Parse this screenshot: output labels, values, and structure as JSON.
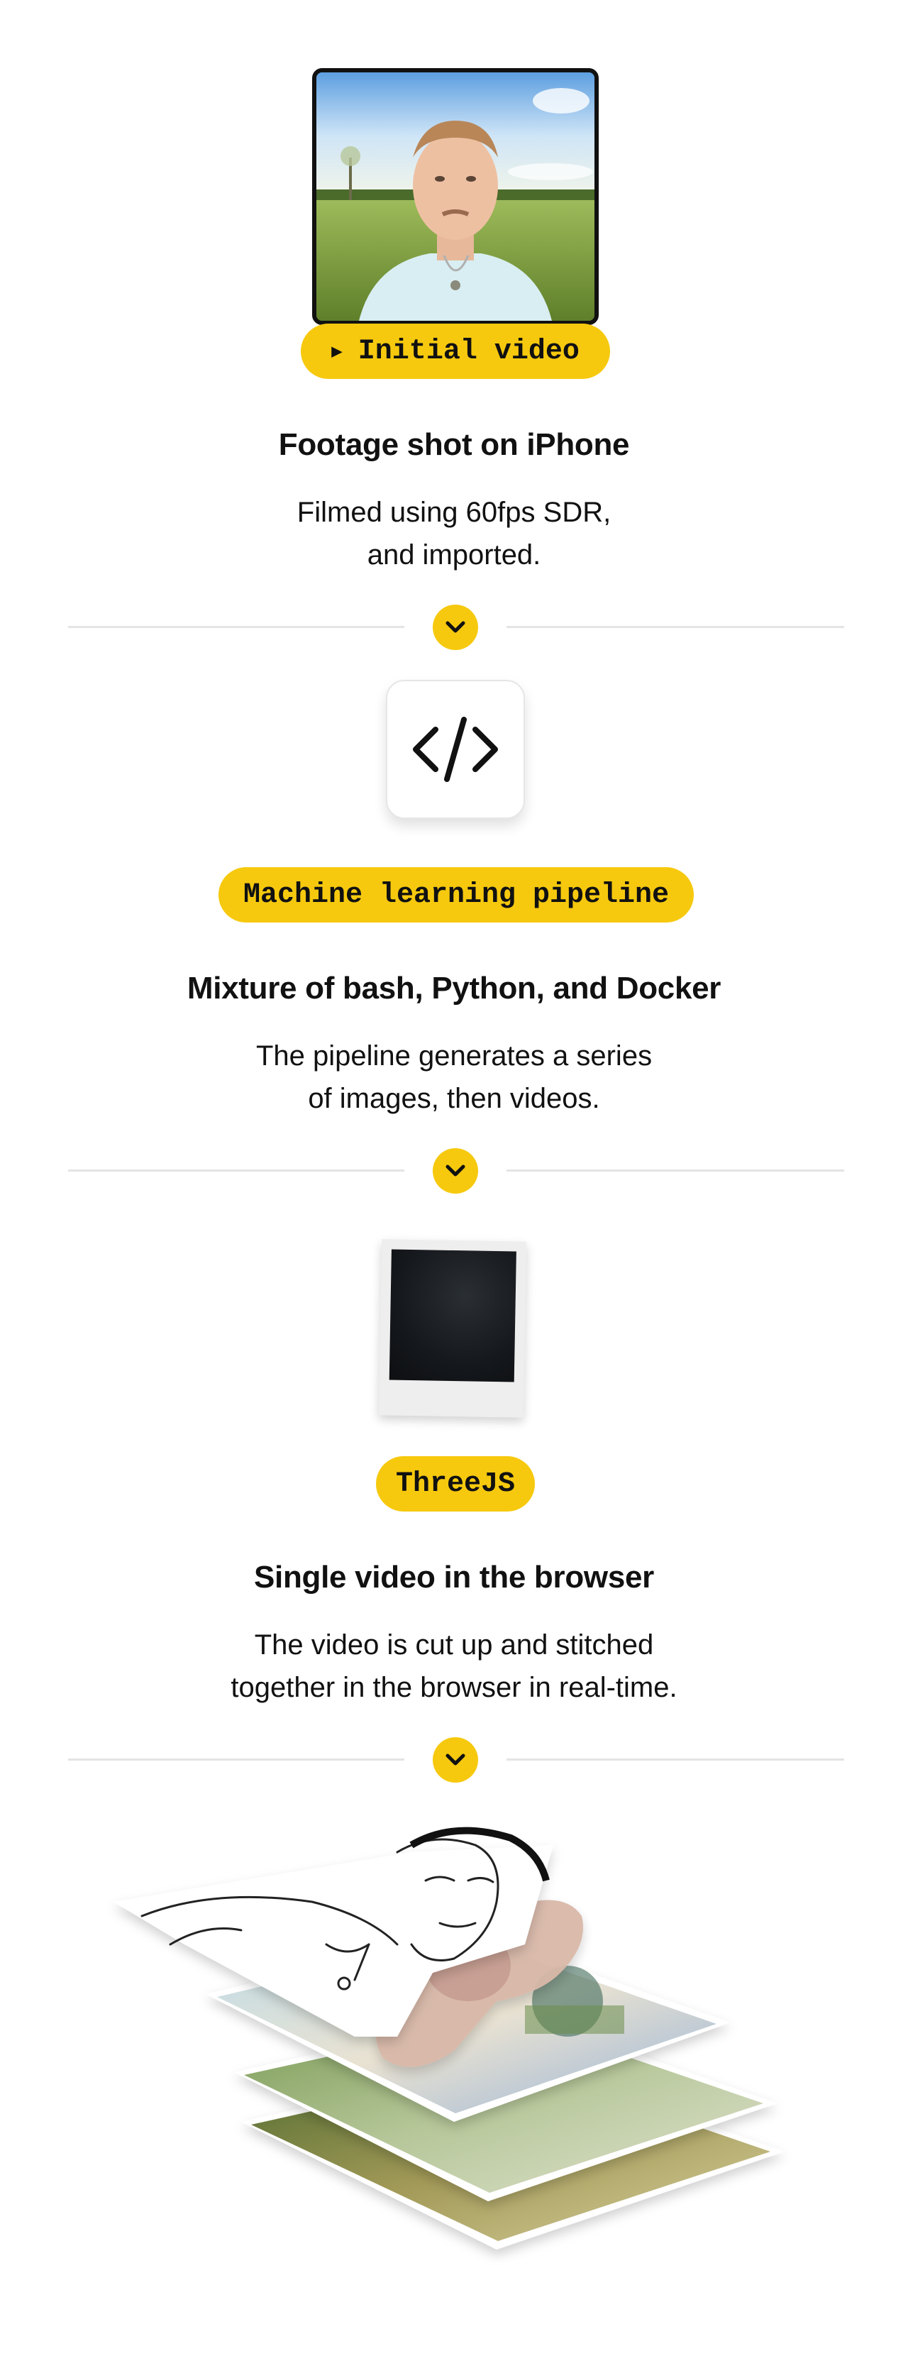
{
  "section1": {
    "badge_icon": "play-icon",
    "badge": "Initial video",
    "heading": "Footage shot on iPhone",
    "sub_line1": "Filmed using 60fps SDR,",
    "sub_line2": "and imported."
  },
  "section2": {
    "icon": "code-icon",
    "badge": "Machine learning pipeline",
    "heading": "Mixture of bash, Python, and Docker",
    "sub_line1": "The pipeline generates a series",
    "sub_line2": "of images, then videos."
  },
  "section3": {
    "badge": "ThreeJS",
    "heading": "Single video in the browser",
    "sub_line1": "The video is cut up and stitched",
    "sub_line2": "together in the browser in real-time."
  },
  "dividers": {
    "icon": "chevron-down-icon"
  },
  "colors": {
    "accent": "#f6c90e",
    "text": "#111111",
    "divider": "#e4e4e4"
  }
}
